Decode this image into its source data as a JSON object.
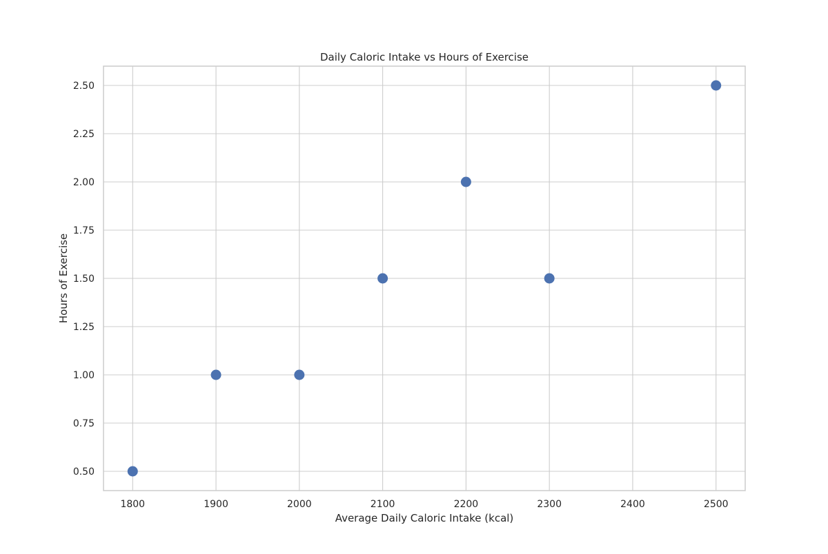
{
  "chart_data": {
    "type": "scatter",
    "title": "Daily Caloric Intake vs Hours of Exercise",
    "xlabel": "Average Daily Caloric Intake (kcal)",
    "ylabel": "Hours of Exercise",
    "x": [
      1800,
      1900,
      2000,
      2100,
      2200,
      2300,
      2500
    ],
    "y": [
      0.5,
      1.0,
      1.0,
      1.5,
      2.0,
      1.5,
      2.5
    ],
    "xlim": [
      1765,
      2535
    ],
    "ylim": [
      0.4,
      2.6
    ],
    "x_ticks": [
      1800,
      1900,
      2000,
      2100,
      2200,
      2300,
      2400,
      2500
    ],
    "x_tick_labels": [
      "1800",
      "1900",
      "2000",
      "2100",
      "2200",
      "2300",
      "2400",
      "2500"
    ],
    "y_ticks": [
      0.5,
      0.75,
      1.0,
      1.25,
      1.5,
      1.75,
      2.0,
      2.25,
      2.5
    ],
    "y_tick_labels": [
      "0.50",
      "0.75",
      "1.00",
      "1.25",
      "1.50",
      "1.75",
      "2.00",
      "2.25",
      "2.50"
    ],
    "grid": true,
    "marker_color": "#4c72b0",
    "grid_color": "#cccccc"
  }
}
